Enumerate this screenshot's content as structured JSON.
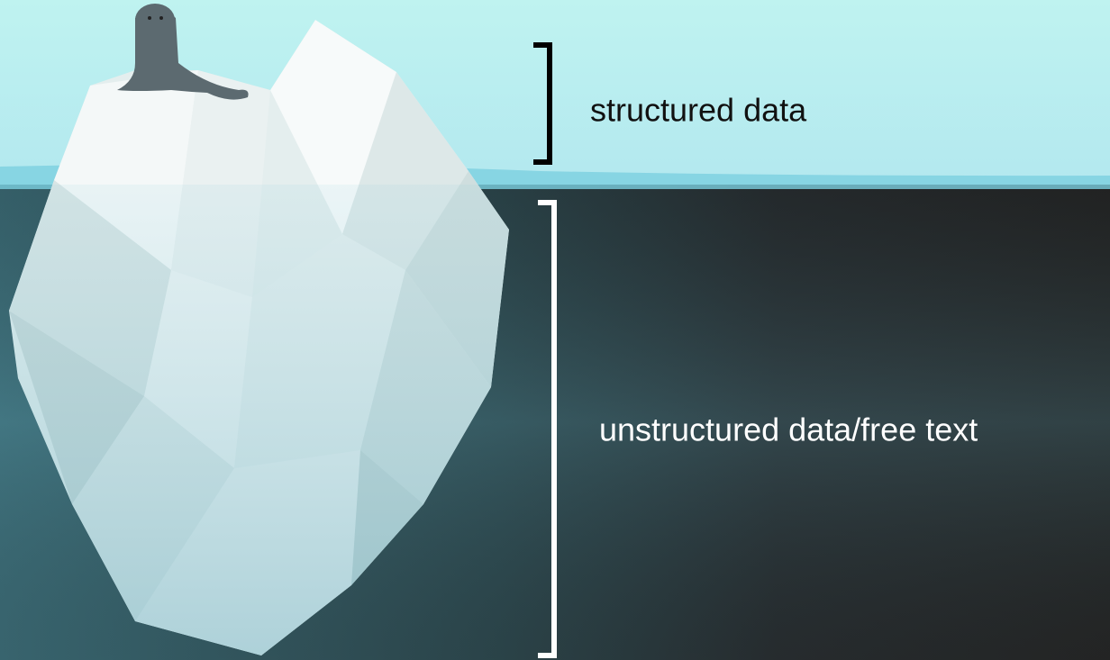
{
  "labels": {
    "structured": "structured data",
    "unstructured": "unstructured data/free text"
  }
}
